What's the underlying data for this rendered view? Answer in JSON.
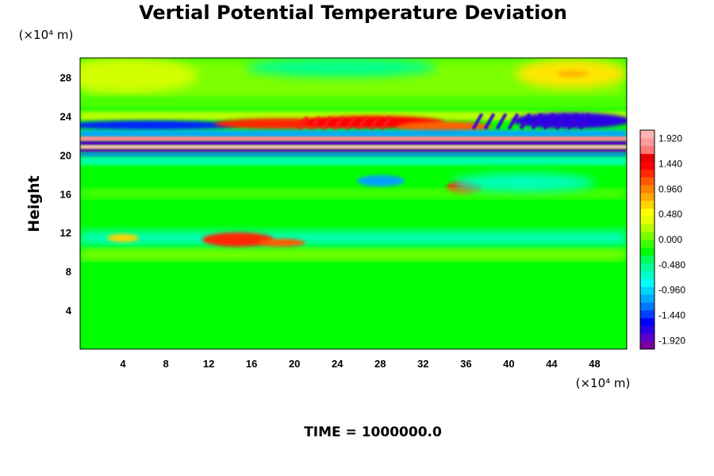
{
  "chart_data": {
    "type": "heatmap",
    "title": "Vertial Potential Temperature Deviation",
    "ylabel": "Height",
    "xlabel": "",
    "x_unit": "(×10⁴ m)",
    "y_unit": "(×10⁴ m)",
    "xlim": [
      0,
      51
    ],
    "ylim": [
      0,
      30
    ],
    "x_ticks": [
      4,
      8,
      12,
      16,
      20,
      24,
      28,
      32,
      36,
      40,
      44,
      48
    ],
    "y_ticks": [
      4,
      8,
      12,
      16,
      20,
      24,
      28
    ],
    "colorbar": {
      "min": -2.08,
      "max": 2.08,
      "labels": [
        "1.920",
        "1.440",
        "0.960",
        "0.480",
        "0.000",
        "-0.480",
        "-0.960",
        "-1.440",
        "-1.920"
      ],
      "label_values": [
        1.92,
        1.44,
        0.96,
        0.48,
        0.0,
        -0.48,
        -0.96,
        -1.44,
        -1.92
      ],
      "colors": [
        "#7a00a0",
        "#5a00c8",
        "#2a00e6",
        "#0000ff",
        "#0040ff",
        "#0078ff",
        "#00aaff",
        "#00d4ff",
        "#00ffff",
        "#00ffc8",
        "#00ff96",
        "#00ff5a",
        "#00ff00",
        "#3cff00",
        "#78ff00",
        "#b4ff00",
        "#e6ff00",
        "#ffff00",
        "#ffd200",
        "#ffaa00",
        "#ff8200",
        "#ff5a00",
        "#ff2800",
        "#ff0000",
        "#e60000",
        "#ff7878",
        "#ff9a9a",
        "#ffb4b4"
      ]
    },
    "annotation": "TIME = 1000000.0"
  }
}
